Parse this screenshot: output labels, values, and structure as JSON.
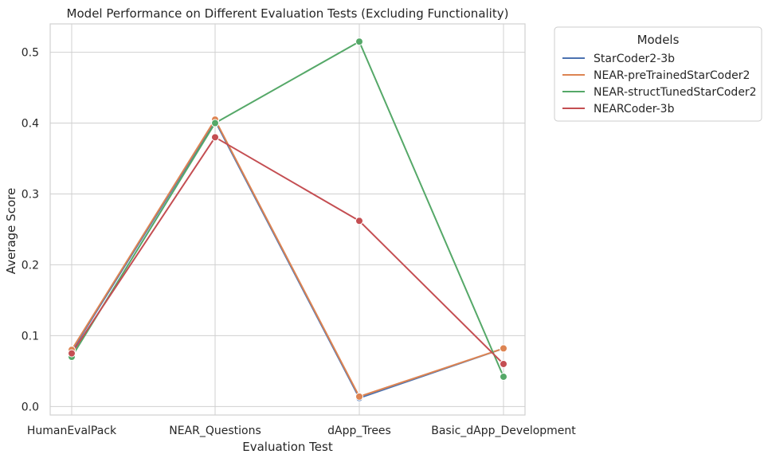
{
  "chart_data": {
    "type": "line",
    "title": "Model Performance on Different Evaluation Tests (Excluding Functionality)",
    "xlabel": "Evaluation Test",
    "ylabel": "Average Score",
    "categories": [
      "HumanEvalPack",
      "NEAR_Questions",
      "dApp_Trees",
      "Basic_dApp_Development"
    ],
    "ylim": [
      -0.012,
      0.54
    ],
    "yticks": [
      0.0,
      0.1,
      0.2,
      0.3,
      0.4,
      0.5
    ],
    "yticklabels": [
      "0.0",
      "0.1",
      "0.2",
      "0.3",
      "0.4",
      "0.5"
    ],
    "grid": true,
    "legend": {
      "title": "Models",
      "placement": "outside-top-right"
    },
    "series": [
      {
        "name": "StarCoder2-3b",
        "color": "#4c72b0",
        "values": [
          0.078,
          0.403,
          0.012,
          0.082
        ]
      },
      {
        "name": "NEAR-preTrainedStarCoder2",
        "color": "#dd8452",
        "values": [
          0.08,
          0.405,
          0.014,
          0.082
        ]
      },
      {
        "name": "NEAR-structTunedStarCoder2",
        "color": "#55a868",
        "values": [
          0.07,
          0.4,
          0.515,
          0.042
        ]
      },
      {
        "name": "NEARCoder-3b",
        "color": "#c44e52",
        "values": [
          0.075,
          0.38,
          0.262,
          0.06
        ]
      }
    ]
  }
}
